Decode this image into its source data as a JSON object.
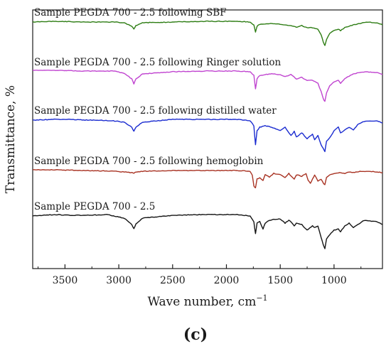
{
  "chart_data": {
    "type": "line",
    "panel_label": "(c)",
    "xlabel": "Wave number, cm",
    "xlabel_superscript": "−1",
    "ylabel": "Transmittance, %",
    "x_reversed": true,
    "xlim": [
      3800,
      550
    ],
    "x_ticks": [
      3500,
      3000,
      2500,
      2000,
      1500,
      1000
    ],
    "y_ticks": false,
    "grid": false,
    "legend": "none",
    "series": [
      {
        "name": "Sample PEGDA 700 - 2.5 following SBF",
        "color": "#2e7d14",
        "baseline": 31,
        "points": [
          [
            3800,
            0
          ],
          [
            3600,
            -1
          ],
          [
            3300,
            0
          ],
          [
            3050,
            0
          ],
          [
            2950,
            1
          ],
          [
            2880,
            6
          ],
          [
            2860,
            10
          ],
          [
            2840,
            5
          ],
          [
            2780,
            1
          ],
          [
            2500,
            0
          ],
          [
            2200,
            -1
          ],
          [
            1900,
            -1
          ],
          [
            1780,
            0
          ],
          [
            1745,
            4
          ],
          [
            1730,
            14
          ],
          [
            1715,
            6
          ],
          [
            1690,
            3
          ],
          [
            1640,
            3
          ],
          [
            1580,
            2
          ],
          [
            1500,
            3
          ],
          [
            1455,
            4
          ],
          [
            1400,
            5
          ],
          [
            1350,
            7
          ],
          [
            1300,
            5
          ],
          [
            1250,
            8
          ],
          [
            1200,
            8
          ],
          [
            1150,
            10
          ],
          [
            1120,
            18
          ],
          [
            1100,
            28
          ],
          [
            1085,
            33
          ],
          [
            1070,
            25
          ],
          [
            1040,
            16
          ],
          [
            1000,
            12
          ],
          [
            960,
            10
          ],
          [
            940,
            12
          ],
          [
            900,
            8
          ],
          [
            860,
            6
          ],
          [
            820,
            4
          ],
          [
            760,
            2
          ],
          [
            700,
            0
          ],
          [
            600,
            1
          ],
          [
            550,
            4
          ]
        ]
      },
      {
        "name": "Sample PEGDA 700 - 2.5 following Ringer solution",
        "color": "#c044d0",
        "baseline": 101,
        "points": [
          [
            3800,
            -2
          ],
          [
            3600,
            -2
          ],
          [
            3300,
            -1
          ],
          [
            3050,
            -1
          ],
          [
            2950,
            2
          ],
          [
            2880,
            10
          ],
          [
            2860,
            17
          ],
          [
            2840,
            10
          ],
          [
            2780,
            3
          ],
          [
            2500,
            0
          ],
          [
            2200,
            -1
          ],
          [
            1900,
            -1
          ],
          [
            1780,
            0
          ],
          [
            1745,
            5
          ],
          [
            1730,
            24
          ],
          [
            1715,
            10
          ],
          [
            1690,
            5
          ],
          [
            1640,
            4
          ],
          [
            1580,
            3
          ],
          [
            1500,
            4
          ],
          [
            1455,
            7
          ],
          [
            1400,
            4
          ],
          [
            1350,
            10
          ],
          [
            1300,
            8
          ],
          [
            1250,
            12
          ],
          [
            1200,
            12
          ],
          [
            1150,
            16
          ],
          [
            1120,
            28
          ],
          [
            1100,
            38
          ],
          [
            1085,
            42
          ],
          [
            1070,
            30
          ],
          [
            1040,
            20
          ],
          [
            1000,
            14
          ],
          [
            960,
            12
          ],
          [
            940,
            16
          ],
          [
            900,
            10
          ],
          [
            860,
            6
          ],
          [
            820,
            3
          ],
          [
            760,
            1
          ],
          [
            700,
            0
          ],
          [
            600,
            1
          ],
          [
            550,
            4
          ]
        ]
      },
      {
        "name": "Sample PEGDA 700 - 2.5 following distilled water",
        "color": "#1a2bd0",
        "baseline": 169,
        "points": [
          [
            3800,
            0
          ],
          [
            3600,
            -1
          ],
          [
            3450,
            -1
          ],
          [
            3300,
            0
          ],
          [
            3200,
            0
          ],
          [
            3050,
            1
          ],
          [
            2950,
            3
          ],
          [
            2880,
            10
          ],
          [
            2860,
            16
          ],
          [
            2840,
            10
          ],
          [
            2780,
            3
          ],
          [
            2500,
            -1
          ],
          [
            2200,
            -1
          ],
          [
            1900,
            -1
          ],
          [
            1780,
            1
          ],
          [
            1745,
            8
          ],
          [
            1730,
            35
          ],
          [
            1715,
            15
          ],
          [
            1690,
            10
          ],
          [
            1640,
            8
          ],
          [
            1580,
            10
          ],
          [
            1500,
            15
          ],
          [
            1455,
            10
          ],
          [
            1400,
            22
          ],
          [
            1370,
            16
          ],
          [
            1350,
            24
          ],
          [
            1300,
            18
          ],
          [
            1250,
            26
          ],
          [
            1200,
            20
          ],
          [
            1180,
            28
          ],
          [
            1150,
            22
          ],
          [
            1120,
            35
          ],
          [
            1100,
            40
          ],
          [
            1085,
            44
          ],
          [
            1070,
            30
          ],
          [
            1040,
            25
          ],
          [
            1000,
            15
          ],
          [
            960,
            10
          ],
          [
            940,
            18
          ],
          [
            900,
            14
          ],
          [
            860,
            10
          ],
          [
            820,
            14
          ],
          [
            780,
            6
          ],
          [
            720,
            2
          ],
          [
            600,
            1
          ],
          [
            550,
            4
          ]
        ]
      },
      {
        "name": "Sample PEGDA 700 - 2.5 following hemoglobin",
        "color": "#a83222",
        "baseline": 240,
        "points": [
          [
            3800,
            -1
          ],
          [
            3600,
            -1
          ],
          [
            3300,
            0
          ],
          [
            3050,
            1
          ],
          [
            2950,
            2
          ],
          [
            2880,
            3
          ],
          [
            2860,
            4
          ],
          [
            2840,
            2
          ],
          [
            2780,
            1
          ],
          [
            2500,
            0
          ],
          [
            2200,
            0
          ],
          [
            1900,
            0
          ],
          [
            1780,
            1
          ],
          [
            1760,
            6
          ],
          [
            1745,
            22
          ],
          [
            1730,
            24
          ],
          [
            1715,
            12
          ],
          [
            1690,
            10
          ],
          [
            1660,
            14
          ],
          [
            1640,
            6
          ],
          [
            1600,
            9
          ],
          [
            1560,
            4
          ],
          [
            1500,
            6
          ],
          [
            1455,
            10
          ],
          [
            1420,
            4
          ],
          [
            1400,
            8
          ],
          [
            1370,
            12
          ],
          [
            1350,
            6
          ],
          [
            1300,
            8
          ],
          [
            1260,
            4
          ],
          [
            1240,
            14
          ],
          [
            1220,
            18
          ],
          [
            1200,
            12
          ],
          [
            1180,
            6
          ],
          [
            1150,
            15
          ],
          [
            1120,
            12
          ],
          [
            1100,
            18
          ],
          [
            1085,
            20
          ],
          [
            1070,
            10
          ],
          [
            1040,
            6
          ],
          [
            1000,
            4
          ],
          [
            960,
            3
          ],
          [
            900,
            4
          ],
          [
            860,
            2
          ],
          [
            820,
            3
          ],
          [
            760,
            1
          ],
          [
            700,
            1
          ],
          [
            600,
            2
          ],
          [
            550,
            3
          ]
        ]
      },
      {
        "name": "Sample PEGDA 700 - 2.5",
        "color": "#141414",
        "baseline": 304,
        "points": [
          [
            3800,
            0
          ],
          [
            3600,
            -2
          ],
          [
            3450,
            -1
          ],
          [
            3300,
            -1
          ],
          [
            3100,
            -2
          ],
          [
            3050,
            0
          ],
          [
            2950,
            3
          ],
          [
            2880,
            12
          ],
          [
            2860,
            18
          ],
          [
            2840,
            11
          ],
          [
            2780,
            3
          ],
          [
            2500,
            -1
          ],
          [
            2200,
            -2
          ],
          [
            1900,
            -2
          ],
          [
            1780,
            0
          ],
          [
            1745,
            8
          ],
          [
            1730,
            25
          ],
          [
            1715,
            10
          ],
          [
            1690,
            8
          ],
          [
            1660,
            18
          ],
          [
            1640,
            10
          ],
          [
            1600,
            6
          ],
          [
            1560,
            5
          ],
          [
            1500,
            4
          ],
          [
            1455,
            10
          ],
          [
            1420,
            6
          ],
          [
            1400,
            8
          ],
          [
            1370,
            14
          ],
          [
            1350,
            10
          ],
          [
            1300,
            12
          ],
          [
            1250,
            20
          ],
          [
            1200,
            14
          ],
          [
            1180,
            16
          ],
          [
            1150,
            14
          ],
          [
            1120,
            30
          ],
          [
            1100,
            40
          ],
          [
            1085,
            46
          ],
          [
            1070,
            32
          ],
          [
            1040,
            26
          ],
          [
            1000,
            20
          ],
          [
            960,
            18
          ],
          [
            940,
            22
          ],
          [
            900,
            14
          ],
          [
            860,
            10
          ],
          [
            820,
            16
          ],
          [
            780,
            12
          ],
          [
            720,
            6
          ],
          [
            600,
            8
          ],
          [
            550,
            12
          ]
        ]
      }
    ]
  }
}
